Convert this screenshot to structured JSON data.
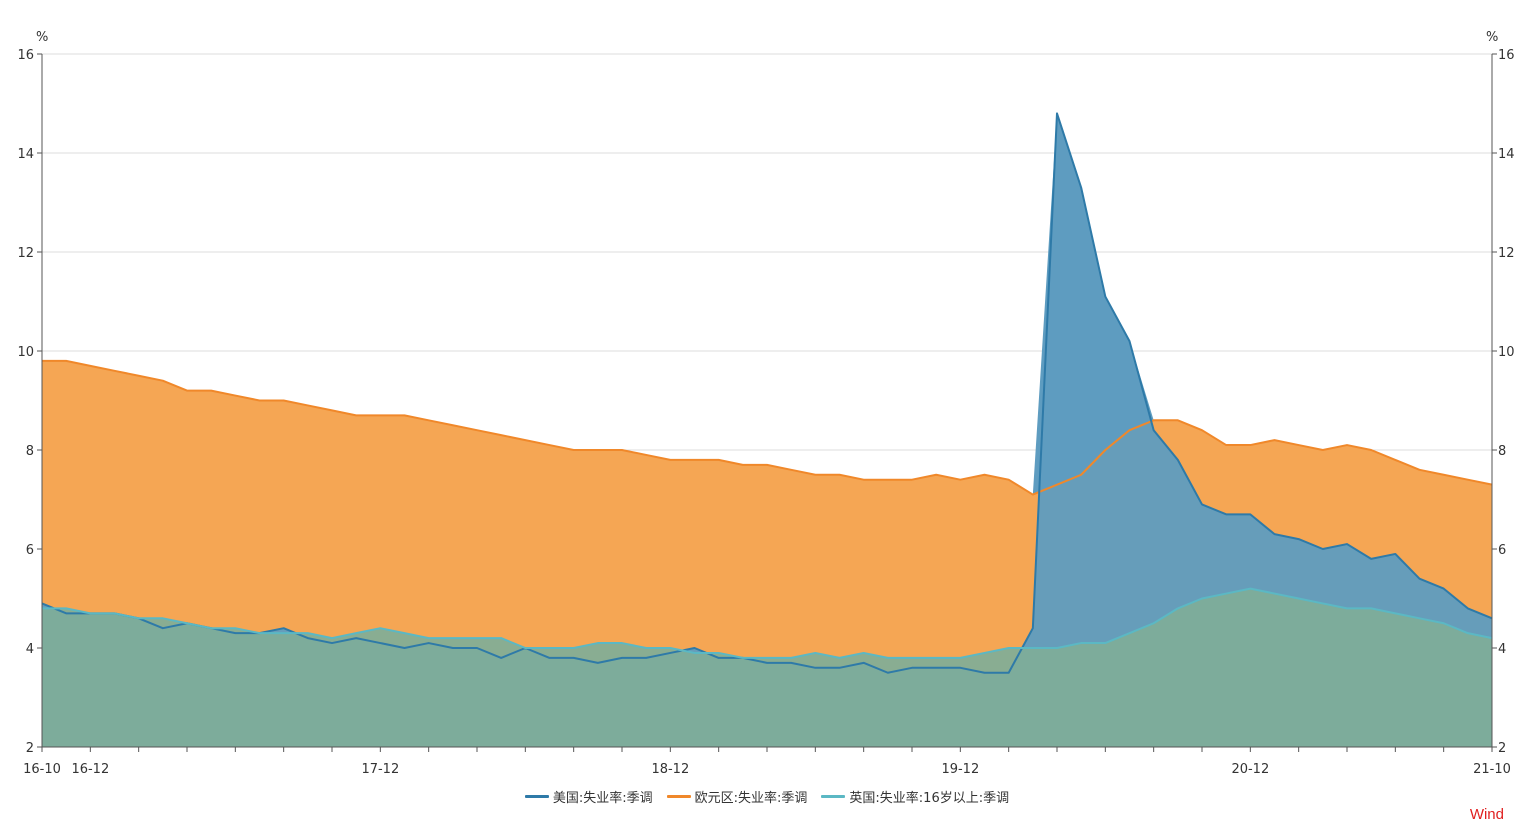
{
  "chart_data": {
    "type": "area",
    "y_unit_left": "%",
    "y_unit_right": "%",
    "ylim": [
      2,
      16
    ],
    "yticks": [
      2,
      4,
      6,
      8,
      10,
      12,
      14,
      16
    ],
    "x_labels": [
      "16-10",
      "16-12",
      "17-12",
      "18-12",
      "19-12",
      "20-12",
      "21-10"
    ],
    "x_label_positions": [
      "2016-10",
      "2016-12",
      "2017-12",
      "2018-12",
      "2019-12",
      "2020-12",
      "2021-10"
    ],
    "x_start": "2016-10",
    "x_end": "2021-10",
    "grid": true,
    "legend_position": "bottom",
    "series": [
      {
        "name": "美国:失业率:季调",
        "color": "#2e7aa8",
        "fill": "#5e9cc0",
        "x": [
          "2016-10",
          "2016-11",
          "2016-12",
          "2017-01",
          "2017-02",
          "2017-03",
          "2017-04",
          "2017-05",
          "2017-06",
          "2017-07",
          "2017-08",
          "2017-09",
          "2017-10",
          "2017-11",
          "2017-12",
          "2018-01",
          "2018-02",
          "2018-03",
          "2018-04",
          "2018-05",
          "2018-06",
          "2018-07",
          "2018-08",
          "2018-09",
          "2018-10",
          "2018-11",
          "2018-12",
          "2019-01",
          "2019-02",
          "2019-03",
          "2019-04",
          "2019-05",
          "2019-06",
          "2019-07",
          "2019-08",
          "2019-09",
          "2019-10",
          "2019-11",
          "2019-12",
          "2020-01",
          "2020-02",
          "2020-03",
          "2020-04",
          "2020-05",
          "2020-06",
          "2020-07",
          "2020-08",
          "2020-09",
          "2020-10",
          "2020-11",
          "2020-12",
          "2021-01",
          "2021-02",
          "2021-03",
          "2021-04",
          "2021-05",
          "2021-06",
          "2021-07",
          "2021-08",
          "2021-09",
          "2021-10"
        ],
        "values": [
          4.9,
          4.7,
          4.7,
          4.7,
          4.6,
          4.4,
          4.5,
          4.4,
          4.3,
          4.3,
          4.4,
          4.2,
          4.1,
          4.2,
          4.1,
          4.0,
          4.1,
          4.0,
          4.0,
          3.8,
          4.0,
          3.8,
          3.8,
          3.7,
          3.8,
          3.8,
          3.9,
          4.0,
          3.8,
          3.8,
          3.7,
          3.7,
          3.6,
          3.6,
          3.7,
          3.5,
          3.6,
          3.6,
          3.6,
          3.5,
          3.5,
          4.4,
          14.8,
          13.3,
          11.1,
          10.2,
          8.4,
          7.8,
          6.9,
          6.7,
          6.7,
          6.3,
          6.2,
          6.0,
          6.1,
          5.8,
          5.9,
          5.4,
          5.2,
          4.8,
          4.6
        ]
      },
      {
        "name": "欧元区:失业率:季调",
        "color": "#f0882a",
        "fill": "#f5a654",
        "x": [
          "2016-10",
          "2016-11",
          "2016-12",
          "2017-01",
          "2017-02",
          "2017-03",
          "2017-04",
          "2017-05",
          "2017-06",
          "2017-07",
          "2017-08",
          "2017-09",
          "2017-10",
          "2017-11",
          "2017-12",
          "2018-01",
          "2018-02",
          "2018-03",
          "2018-04",
          "2018-05",
          "2018-06",
          "2018-07",
          "2018-08",
          "2018-09",
          "2018-10",
          "2018-11",
          "2018-12",
          "2019-01",
          "2019-02",
          "2019-03",
          "2019-04",
          "2019-05",
          "2019-06",
          "2019-07",
          "2019-08",
          "2019-09",
          "2019-10",
          "2019-11",
          "2019-12",
          "2020-01",
          "2020-02",
          "2020-03",
          "2020-04",
          "2020-05",
          "2020-06",
          "2020-07",
          "2020-08",
          "2020-09",
          "2020-10",
          "2020-11",
          "2020-12",
          "2021-01",
          "2021-02",
          "2021-03",
          "2021-04",
          "2021-05",
          "2021-06",
          "2021-07",
          "2021-08",
          "2021-09",
          "2021-10"
        ],
        "values": [
          9.8,
          9.8,
          9.7,
          9.6,
          9.5,
          9.4,
          9.2,
          9.2,
          9.1,
          9.0,
          9.0,
          8.9,
          8.8,
          8.7,
          8.7,
          8.7,
          8.6,
          8.5,
          8.4,
          8.3,
          8.2,
          8.1,
          8.0,
          8.0,
          8.0,
          7.9,
          7.8,
          7.8,
          7.8,
          7.7,
          7.7,
          7.6,
          7.5,
          7.5,
          7.4,
          7.4,
          7.4,
          7.5,
          7.4,
          7.5,
          7.4,
          7.1,
          7.3,
          7.5,
          8.0,
          8.4,
          8.6,
          8.6,
          8.4,
          8.1,
          8.1,
          8.2,
          8.1,
          8.0,
          8.1,
          8.0,
          7.8,
          7.6,
          7.5,
          7.4,
          7.3
        ]
      },
      {
        "name": "英国:失业率:16岁以上:季调",
        "color": "#5bb8c4",
        "fill": "#7fae98",
        "x": [
          "2016-10",
          "2016-11",
          "2016-12",
          "2017-01",
          "2017-02",
          "2017-03",
          "2017-04",
          "2017-05",
          "2017-06",
          "2017-07",
          "2017-08",
          "2017-09",
          "2017-10",
          "2017-11",
          "2017-12",
          "2018-01",
          "2018-02",
          "2018-03",
          "2018-04",
          "2018-05",
          "2018-06",
          "2018-07",
          "2018-08",
          "2018-09",
          "2018-10",
          "2018-11",
          "2018-12",
          "2019-01",
          "2019-02",
          "2019-03",
          "2019-04",
          "2019-05",
          "2019-06",
          "2019-07",
          "2019-08",
          "2019-09",
          "2019-10",
          "2019-11",
          "2019-12",
          "2020-01",
          "2020-02",
          "2020-03",
          "2020-04",
          "2020-05",
          "2020-06",
          "2020-07",
          "2020-08",
          "2020-09",
          "2020-10",
          "2020-11",
          "2020-12",
          "2021-01",
          "2021-02",
          "2021-03",
          "2021-04",
          "2021-05",
          "2021-06",
          "2021-07",
          "2021-08",
          "2021-09",
          "2021-10"
        ],
        "values": [
          4.8,
          4.8,
          4.7,
          4.7,
          4.6,
          4.6,
          4.5,
          4.4,
          4.4,
          4.3,
          4.3,
          4.3,
          4.2,
          4.3,
          4.4,
          4.3,
          4.2,
          4.2,
          4.2,
          4.2,
          4.0,
          4.0,
          4.0,
          4.1,
          4.1,
          4.0,
          4.0,
          3.9,
          3.9,
          3.8,
          3.8,
          3.8,
          3.9,
          3.8,
          3.9,
          3.8,
          3.8,
          3.8,
          3.8,
          3.9,
          4.0,
          4.0,
          4.0,
          4.1,
          4.1,
          4.3,
          4.5,
          4.8,
          5.0,
          5.1,
          5.2,
          5.1,
          5.0,
          4.9,
          4.8,
          4.8,
          4.7,
          4.6,
          4.5,
          4.3,
          4.2
        ]
      }
    ]
  },
  "watermark": "Wind"
}
